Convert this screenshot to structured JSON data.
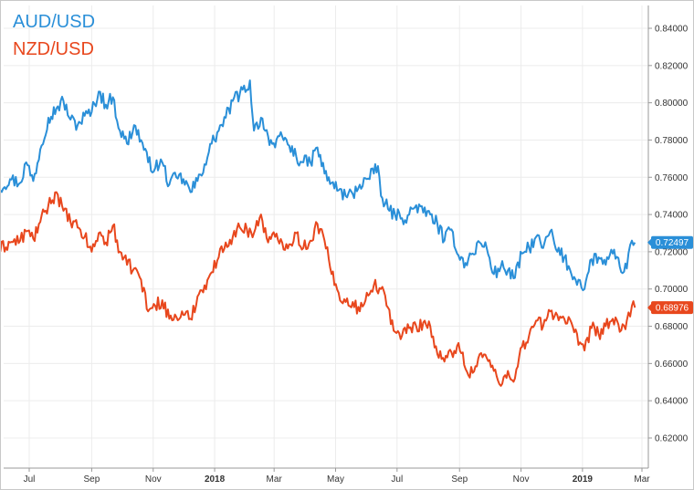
{
  "chart_data": {
    "type": "line",
    "title": "",
    "xlabel": "",
    "ylabel": "",
    "x_range": [
      "2017-06-01",
      "2019-03-15"
    ],
    "ylim": [
      0.6,
      0.85
    ],
    "y_ticks": [
      "0.84000",
      "0.82000",
      "0.80000",
      "0.78000",
      "0.76000",
      "0.74000",
      "0.72000",
      "0.70000",
      "0.68000",
      "0.66000",
      "0.64000",
      "0.62000"
    ],
    "x_ticks": [
      {
        "date": "2017-07-01",
        "label": "Jul",
        "bold": false
      },
      {
        "date": "2017-09-01",
        "label": "Sep",
        "bold": false
      },
      {
        "date": "2017-11-01",
        "label": "Nov",
        "bold": false
      },
      {
        "date": "2018-01-01",
        "label": "2018",
        "bold": true
      },
      {
        "date": "2018-03-01",
        "label": "Mar",
        "bold": false
      },
      {
        "date": "2018-05-01",
        "label": "May",
        "bold": false
      },
      {
        "date": "2018-07-01",
        "label": "Jul",
        "bold": false
      },
      {
        "date": "2018-09-01",
        "label": "Sep",
        "bold": false
      },
      {
        "date": "2018-11-01",
        "label": "Nov",
        "bold": false
      },
      {
        "date": "2019-01-01",
        "label": "2019",
        "bold": true
      },
      {
        "date": "2019-03-01",
        "label": "Mar",
        "bold": false
      }
    ],
    "grid": true,
    "legend_position": "top-left",
    "series": [
      {
        "name": "AUD/USD",
        "color": "#2a8fd8",
        "last_value_label": "0.72497",
        "points": [
          [
            "2017-06-01",
            0.754
          ],
          [
            "2017-06-12",
            0.759
          ],
          [
            "2017-06-22",
            0.757
          ],
          [
            "2017-06-28",
            0.768
          ],
          [
            "2017-07-05",
            0.758
          ],
          [
            "2017-07-12",
            0.775
          ],
          [
            "2017-07-20",
            0.792
          ],
          [
            "2017-07-28",
            0.797
          ],
          [
            "2017-08-04",
            0.801
          ],
          [
            "2017-08-11",
            0.791
          ],
          [
            "2017-08-18",
            0.788
          ],
          [
            "2017-08-25",
            0.793
          ],
          [
            "2017-09-01",
            0.795
          ],
          [
            "2017-09-08",
            0.806
          ],
          [
            "2017-09-15",
            0.799
          ],
          [
            "2017-09-22",
            0.803
          ],
          [
            "2017-09-29",
            0.785
          ],
          [
            "2017-10-06",
            0.778
          ],
          [
            "2017-10-13",
            0.788
          ],
          [
            "2017-10-20",
            0.78
          ],
          [
            "2017-10-27",
            0.768
          ],
          [
            "2017-11-03",
            0.765
          ],
          [
            "2017-11-10",
            0.768
          ],
          [
            "2017-11-17",
            0.756
          ],
          [
            "2017-11-24",
            0.76
          ],
          [
            "2017-12-01",
            0.759
          ],
          [
            "2017-12-08",
            0.752
          ],
          [
            "2017-12-15",
            0.758
          ],
          [
            "2017-12-22",
            0.767
          ],
          [
            "2017-12-29",
            0.778
          ],
          [
            "2018-01-05",
            0.785
          ],
          [
            "2018-01-12",
            0.792
          ],
          [
            "2018-01-19",
            0.801
          ],
          [
            "2018-01-26",
            0.805
          ],
          [
            "2018-02-02",
            0.807
          ],
          [
            "2018-02-05",
            0.812
          ],
          [
            "2018-02-09",
            0.785
          ],
          [
            "2018-02-16",
            0.792
          ],
          [
            "2018-02-23",
            0.782
          ],
          [
            "2018-03-02",
            0.776
          ],
          [
            "2018-03-09",
            0.782
          ],
          [
            "2018-03-16",
            0.777
          ],
          [
            "2018-03-23",
            0.771
          ],
          [
            "2018-03-30",
            0.768
          ],
          [
            "2018-04-06",
            0.768
          ],
          [
            "2018-04-13",
            0.776
          ],
          [
            "2018-04-20",
            0.762
          ],
          [
            "2018-04-27",
            0.757
          ],
          [
            "2018-05-04",
            0.753
          ],
          [
            "2018-05-11",
            0.75
          ],
          [
            "2018-05-18",
            0.751
          ],
          [
            "2018-05-25",
            0.756
          ],
          [
            "2018-06-01",
            0.759
          ],
          [
            "2018-06-08",
            0.762
          ],
          [
            "2018-06-12",
            0.766
          ],
          [
            "2018-06-15",
            0.75
          ],
          [
            "2018-06-22",
            0.743
          ],
          [
            "2018-06-29",
            0.74
          ],
          [
            "2018-07-06",
            0.738
          ],
          [
            "2018-07-13",
            0.74
          ],
          [
            "2018-07-20",
            0.745
          ],
          [
            "2018-07-27",
            0.741
          ],
          [
            "2018-08-03",
            0.74
          ],
          [
            "2018-08-10",
            0.735
          ],
          [
            "2018-08-17",
            0.726
          ],
          [
            "2018-08-24",
            0.732
          ],
          [
            "2018-08-31",
            0.718
          ],
          [
            "2018-09-07",
            0.714
          ],
          [
            "2018-09-14",
            0.719
          ],
          [
            "2018-09-21",
            0.725
          ],
          [
            "2018-09-28",
            0.722
          ],
          [
            "2018-10-05",
            0.708
          ],
          [
            "2018-10-12",
            0.712
          ],
          [
            "2018-10-19",
            0.71
          ],
          [
            "2018-10-26",
            0.706
          ],
          [
            "2018-11-02",
            0.719
          ],
          [
            "2018-11-09",
            0.722
          ],
          [
            "2018-11-16",
            0.728
          ],
          [
            "2018-11-23",
            0.722
          ],
          [
            "2018-11-30",
            0.731
          ],
          [
            "2018-12-07",
            0.72
          ],
          [
            "2018-12-14",
            0.717
          ],
          [
            "2018-12-21",
            0.708
          ],
          [
            "2018-12-28",
            0.705
          ],
          [
            "2019-01-03",
            0.7
          ],
          [
            "2019-01-10",
            0.716
          ],
          [
            "2019-01-17",
            0.717
          ],
          [
            "2019-01-24",
            0.713
          ],
          [
            "2019-01-31",
            0.719
          ],
          [
            "2019-02-07",
            0.712
          ],
          [
            "2019-02-14",
            0.711
          ],
          [
            "2019-02-19",
            0.726
          ],
          [
            "2019-02-22",
            0.725
          ]
        ]
      },
      {
        "name": "NZD/USD",
        "color": "#e8471d",
        "last_value_label": "0.68976",
        "points": [
          [
            "2017-06-01",
            0.721
          ],
          [
            "2017-06-12",
            0.725
          ],
          [
            "2017-06-22",
            0.726
          ],
          [
            "2017-06-28",
            0.731
          ],
          [
            "2017-07-05",
            0.727
          ],
          [
            "2017-07-12",
            0.736
          ],
          [
            "2017-07-20",
            0.745
          ],
          [
            "2017-07-28",
            0.752
          ],
          [
            "2017-08-04",
            0.742
          ],
          [
            "2017-08-11",
            0.736
          ],
          [
            "2017-08-18",
            0.733
          ],
          [
            "2017-08-25",
            0.728
          ],
          [
            "2017-09-01",
            0.72
          ],
          [
            "2017-09-08",
            0.73
          ],
          [
            "2017-09-15",
            0.725
          ],
          [
            "2017-09-22",
            0.734
          ],
          [
            "2017-09-29",
            0.72
          ],
          [
            "2017-10-06",
            0.713
          ],
          [
            "2017-10-13",
            0.711
          ],
          [
            "2017-10-20",
            0.705
          ],
          [
            "2017-10-27",
            0.688
          ],
          [
            "2017-11-03",
            0.691
          ],
          [
            "2017-11-10",
            0.694
          ],
          [
            "2017-11-17",
            0.684
          ],
          [
            "2017-11-24",
            0.685
          ],
          [
            "2017-12-01",
            0.686
          ],
          [
            "2017-12-08",
            0.684
          ],
          [
            "2017-12-15",
            0.696
          ],
          [
            "2017-12-22",
            0.702
          ],
          [
            "2017-12-29",
            0.709
          ],
          [
            "2018-01-05",
            0.717
          ],
          [
            "2018-01-12",
            0.725
          ],
          [
            "2018-01-19",
            0.728
          ],
          [
            "2018-01-26",
            0.733
          ],
          [
            "2018-02-02",
            0.732
          ],
          [
            "2018-02-09",
            0.73
          ],
          [
            "2018-02-16",
            0.74
          ],
          [
            "2018-02-23",
            0.725
          ],
          [
            "2018-03-02",
            0.728
          ],
          [
            "2018-03-09",
            0.725
          ],
          [
            "2018-03-16",
            0.724
          ],
          [
            "2018-03-23",
            0.73
          ],
          [
            "2018-03-30",
            0.722
          ],
          [
            "2018-04-06",
            0.726
          ],
          [
            "2018-04-13",
            0.735
          ],
          [
            "2018-04-20",
            0.726
          ],
          [
            "2018-04-27",
            0.708
          ],
          [
            "2018-05-04",
            0.698
          ],
          [
            "2018-05-11",
            0.693
          ],
          [
            "2018-05-18",
            0.693
          ],
          [
            "2018-05-25",
            0.688
          ],
          [
            "2018-06-01",
            0.698
          ],
          [
            "2018-06-08",
            0.702
          ],
          [
            "2018-06-15",
            0.7
          ],
          [
            "2018-06-22",
            0.69
          ],
          [
            "2018-06-29",
            0.677
          ],
          [
            "2018-07-06",
            0.675
          ],
          [
            "2018-07-13",
            0.679
          ],
          [
            "2018-07-20",
            0.68
          ],
          [
            "2018-07-27",
            0.682
          ],
          [
            "2018-08-03",
            0.68
          ],
          [
            "2018-08-10",
            0.665
          ],
          [
            "2018-08-17",
            0.661
          ],
          [
            "2018-08-24",
            0.666
          ],
          [
            "2018-08-31",
            0.671
          ],
          [
            "2018-09-07",
            0.657
          ],
          [
            "2018-09-14",
            0.655
          ],
          [
            "2018-09-21",
            0.665
          ],
          [
            "2018-09-28",
            0.663
          ],
          [
            "2018-10-05",
            0.656
          ],
          [
            "2018-10-12",
            0.648
          ],
          [
            "2018-10-19",
            0.656
          ],
          [
            "2018-10-26",
            0.652
          ],
          [
            "2018-11-02",
            0.669
          ],
          [
            "2018-11-09",
            0.675
          ],
          [
            "2018-11-16",
            0.683
          ],
          [
            "2018-11-23",
            0.68
          ],
          [
            "2018-11-30",
            0.688
          ],
          [
            "2018-12-07",
            0.686
          ],
          [
            "2018-12-14",
            0.684
          ],
          [
            "2018-12-21",
            0.682
          ],
          [
            "2018-12-28",
            0.67
          ],
          [
            "2019-01-03",
            0.667
          ],
          [
            "2019-01-10",
            0.679
          ],
          [
            "2019-01-17",
            0.676
          ],
          [
            "2019-01-24",
            0.68
          ],
          [
            "2019-01-31",
            0.684
          ],
          [
            "2019-02-07",
            0.677
          ],
          [
            "2019-02-14",
            0.683
          ],
          [
            "2019-02-19",
            0.691
          ],
          [
            "2019-02-22",
            0.69
          ]
        ]
      }
    ]
  }
}
